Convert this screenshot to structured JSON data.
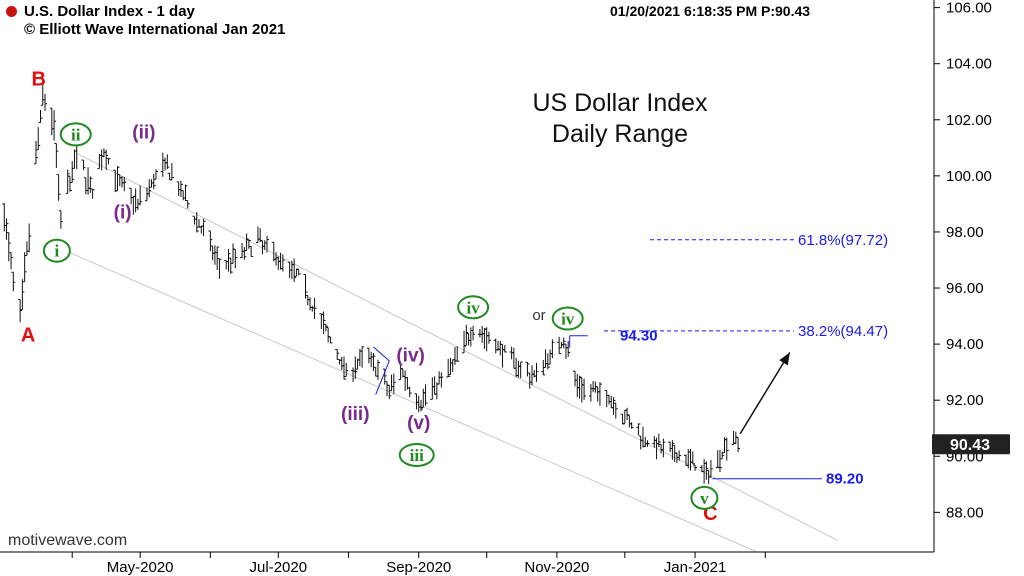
{
  "header": {
    "title": "U.S. Dollar Index - 1 day",
    "copyright": "© Elliott Wave International Jan 2021",
    "status": "01/20/2021 6:18:35 PM  P:90.43"
  },
  "watermark": "motivewave.com",
  "colors": {
    "green": "#1f8a1f",
    "purple": "#7a2a8c",
    "red": "#e01010",
    "blue": "#1a1aee",
    "bars": "#111111",
    "channel": "#c8c8c8"
  },
  "chart_data": {
    "type": "bar",
    "title": "US Dollar Index",
    "subtitle": "Daily Range",
    "ylim": [
      86.8,
      106.2
    ],
    "y_ticks": [
      "106.00",
      "104.00",
      "102.00",
      "100.00",
      "98.00",
      "96.00",
      "94.00",
      "92.00",
      "90.00",
      "88.00"
    ],
    "x_ticks": [
      "May-2020",
      "Jul-2020",
      "Sep-2020",
      "Nov-2020",
      "Jan-2021"
    ],
    "last_price": "90.43",
    "price_path": [
      [
        "2020-03-01",
        99.0
      ],
      [
        "2020-03-09",
        94.8
      ],
      [
        "2020-03-19",
        102.9
      ],
      [
        "2020-03-24",
        101.8
      ],
      [
        "2020-03-27",
        98.4
      ],
      [
        "2020-04-03",
        100.8
      ],
      [
        "2020-04-10",
        99.4
      ],
      [
        "2020-04-15",
        100.9
      ],
      [
        "2020-04-21",
        99.8
      ],
      [
        "2020-04-30",
        99.0
      ],
      [
        "2020-05-12",
        100.4
      ],
      [
        "2020-05-29",
        98.0
      ],
      [
        "2020-06-05",
        96.8
      ],
      [
        "2020-06-10",
        97.0
      ],
      [
        "2020-06-22",
        97.7
      ],
      [
        "2020-07-10",
        96.4
      ],
      [
        "2020-07-31",
        93.0
      ],
      [
        "2020-08-10",
        93.6
      ],
      [
        "2020-08-19",
        92.3
      ],
      [
        "2020-08-24",
        93.1
      ],
      [
        "2020-09-01",
        91.9
      ],
      [
        "2020-09-14",
        93.0
      ],
      [
        "2020-09-25",
        94.6
      ],
      [
        "2020-10-09",
        93.7
      ],
      [
        "2020-10-21",
        92.8
      ],
      [
        "2020-11-04",
        94.2
      ],
      [
        "2020-11-10",
        92.5
      ],
      [
        "2020-11-24",
        92.1
      ],
      [
        "2020-12-07",
        90.8
      ],
      [
        "2020-12-18",
        90.2
      ],
      [
        "2020-12-31",
        89.8
      ],
      [
        "2021-01-06",
        89.3
      ],
      [
        "2021-01-18",
        90.8
      ],
      [
        "2021-01-20",
        90.43
      ]
    ],
    "fib_levels": [
      {
        "label": "61.8%(97.72)",
        "value": 97.72
      },
      {
        "label": "38.2%(94.47)",
        "value": 94.47
      }
    ],
    "price_labels": [
      {
        "label": "94.30",
        "value": 94.3,
        "date": "2020-11-04"
      },
      {
        "label": "89.20",
        "value": 89.2,
        "date": "2021-01-06"
      }
    ],
    "channel_lines": [
      {
        "from": [
          "2020-04-03",
          100.8
        ],
        "to": [
          "2021-03-05",
          87.0
        ]
      },
      {
        "from": [
          "2020-03-27",
          97.4
        ],
        "to": [
          "2021-01-28",
          86.6
        ]
      }
    ],
    "wave_labels": [
      {
        "text": "A",
        "style": "red",
        "date": "2020-03-09",
        "value": 94.8
      },
      {
        "text": "B",
        "style": "red",
        "date": "2020-03-19",
        "value": 102.9
      },
      {
        "text": "C",
        "style": "red",
        "date": "2021-01-06",
        "value": 89.3
      },
      {
        "text": "i",
        "style": "green",
        "date": "2020-03-27",
        "value": 98.4
      },
      {
        "text": "ii",
        "style": "green",
        "date": "2020-04-03",
        "value": 100.8
      },
      {
        "text": "iii",
        "style": "green",
        "date": "2020-09-01",
        "value": 91.9
      },
      {
        "text": "iv",
        "style": "green",
        "date": "2020-09-25",
        "value": 94.6
      },
      {
        "text": "or",
        "style": "plain",
        "date": "2020-10-13",
        "value": 94.6
      },
      {
        "text": "iv",
        "style": "green",
        "date": "2020-11-04",
        "value": 94.2
      },
      {
        "text": "v",
        "style": "green",
        "date": "2021-01-06",
        "value": 89.3
      },
      {
        "text": "(i)",
        "style": "purple",
        "date": "2020-04-10",
        "value": 99.4
      },
      {
        "text": "(ii)",
        "style": "purple",
        "date": "2020-04-15",
        "value": 100.9
      },
      {
        "text": "(iii)",
        "style": "purple",
        "date": "2020-08-19",
        "value": 92.3
      },
      {
        "text": "(iv)",
        "style": "purple",
        "date": "2020-08-24",
        "value": 93.1
      },
      {
        "text": "(v)",
        "style": "purple",
        "date": "2020-09-01",
        "value": 91.9
      }
    ],
    "projection_arrow": {
      "from": [
        "2021-01-20",
        90.8
      ],
      "to": [
        "2021-02-03",
        93.7
      ]
    }
  }
}
